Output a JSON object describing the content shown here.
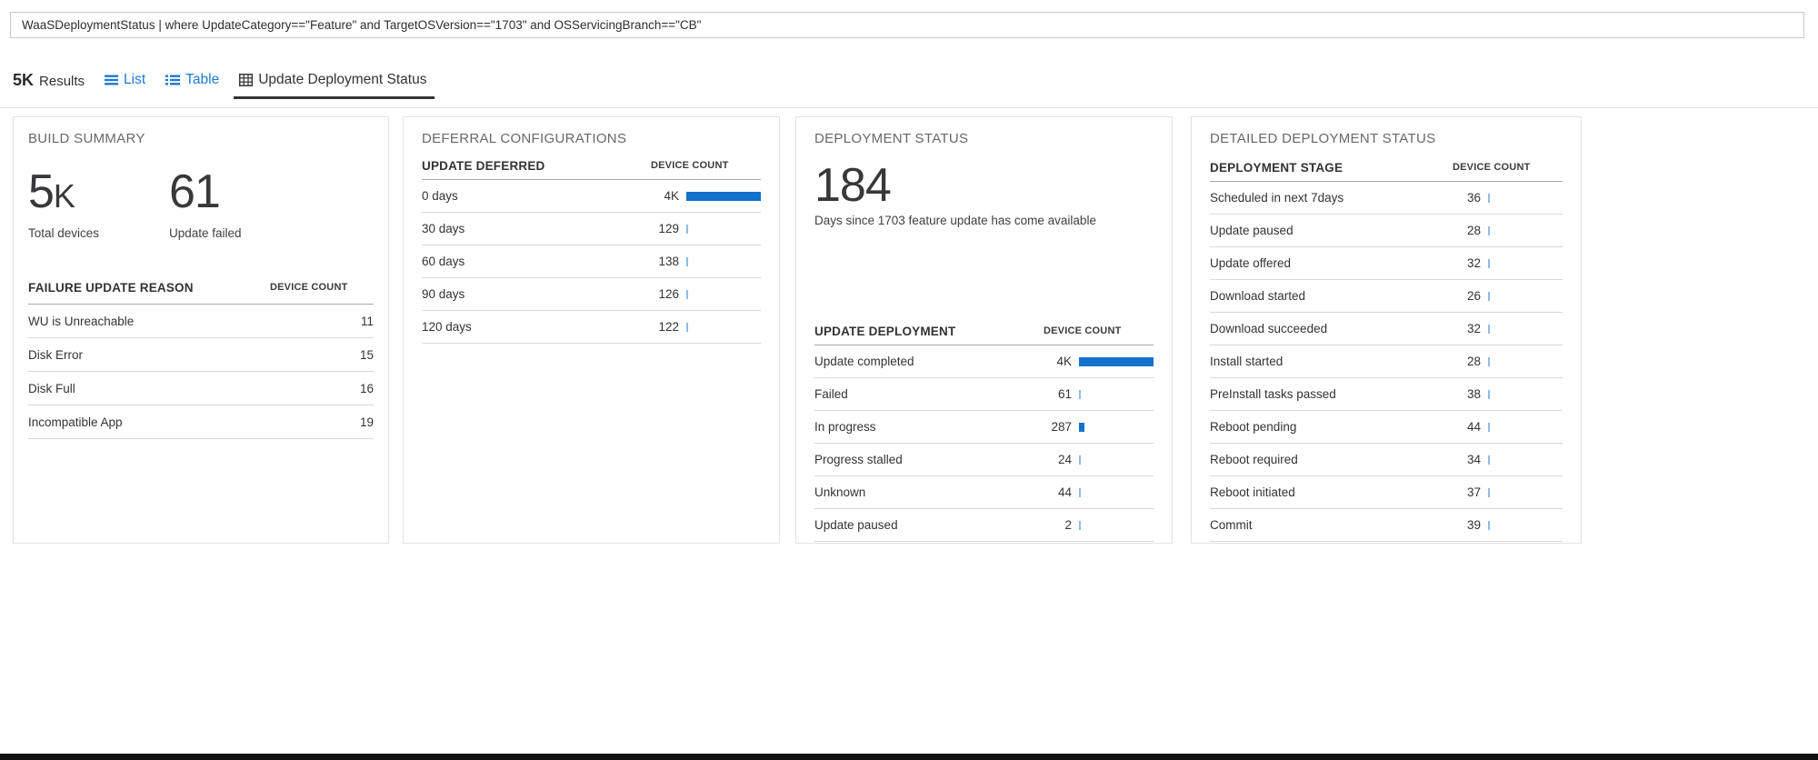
{
  "query_bar": {
    "text": "WaaSDeploymentStatus | where UpdateCategory==\"Feature\" and TargetOSVersion==\"1703\" and OSServicingBranch==\"CB\""
  },
  "toolbar": {
    "results_count": "5K",
    "results_label": "Results",
    "tabs": [
      {
        "label": "List"
      },
      {
        "label": "Table"
      },
      {
        "label": "Update Deployment Status"
      }
    ]
  },
  "colors": {
    "bar_blue": "#1272cc",
    "bar_light_blue": "#8fbce6",
    "link_blue": "#1f7ad4"
  },
  "cards": {
    "build_summary": {
      "title": "BUILD SUMMARY",
      "metrics": [
        {
          "value": "5",
          "suffix": "K",
          "label": "Total devices"
        },
        {
          "value": "61",
          "suffix": "",
          "label": "Update failed"
        }
      ],
      "table": {
        "columns": [
          "FAILURE UPDATE REASON",
          "DEVICE COUNT"
        ],
        "show_bars": false,
        "bar_max": 4000,
        "rows": [
          {
            "label": "WU is Unreachable",
            "display": "11",
            "value": 11
          },
          {
            "label": "Disk Error",
            "display": "15",
            "value": 15
          },
          {
            "label": "Disk Full",
            "display": "16",
            "value": 16
          },
          {
            "label": "Incompatible App",
            "display": "19",
            "value": 19
          }
        ]
      }
    },
    "deferral_configurations": {
      "title": "DEFERRAL CONFIGURATIONS",
      "table": {
        "columns": [
          "UPDATE DEFERRED",
          "DEVICE COUNT"
        ],
        "show_bars": true,
        "bar_max": 4000,
        "rows": [
          {
            "label": "0 days",
            "display": "4K",
            "value": 4000
          },
          {
            "label": "30 days",
            "display": "129",
            "value": 129
          },
          {
            "label": "60 days",
            "display": "138",
            "value": 138
          },
          {
            "label": "90 days",
            "display": "126",
            "value": 126
          },
          {
            "label": "120 days",
            "display": "122",
            "value": 122
          }
        ]
      }
    },
    "deployment_status": {
      "title": "DEPLOYMENT STATUS",
      "metric": {
        "value": "184",
        "label": "Days since 1703 feature update has come available"
      },
      "table": {
        "columns": [
          "UPDATE DEPLOYMENT",
          "DEVICE COUNT"
        ],
        "show_bars": true,
        "bar_max": 4000,
        "rows": [
          {
            "label": "Update completed",
            "display": "4K",
            "value": 4000
          },
          {
            "label": "Failed",
            "display": "61",
            "value": 61
          },
          {
            "label": "In progress",
            "display": "287",
            "value": 287
          },
          {
            "label": "Progress stalled",
            "display": "24",
            "value": 24
          },
          {
            "label": "Unknown",
            "display": "44",
            "value": 44
          },
          {
            "label": "Update paused",
            "display": "2",
            "value": 2
          }
        ]
      }
    },
    "detailed_deployment_status": {
      "title": "DETAILED DEPLOYMENT STATUS",
      "table": {
        "columns": [
          "DEPLOYMENT STAGE",
          "DEVICE COUNT"
        ],
        "show_bars": true,
        "bar_max": 4000,
        "rows": [
          {
            "label": "Scheduled in next 7days",
            "display": "36",
            "value": 36
          },
          {
            "label": "Update paused",
            "display": "28",
            "value": 28
          },
          {
            "label": "Update offered",
            "display": "32",
            "value": 32
          },
          {
            "label": "Download started",
            "display": "26",
            "value": 26
          },
          {
            "label": "Download succeeded",
            "display": "32",
            "value": 32
          },
          {
            "label": "Install started",
            "display": "28",
            "value": 28
          },
          {
            "label": "PreInstall tasks passed",
            "display": "38",
            "value": 38
          },
          {
            "label": "Reboot pending",
            "display": "44",
            "value": 44
          },
          {
            "label": "Reboot required",
            "display": "34",
            "value": 34
          },
          {
            "label": "Reboot initiated",
            "display": "37",
            "value": 37
          },
          {
            "label": "Commit",
            "display": "39",
            "value": 39
          }
        ]
      }
    }
  }
}
